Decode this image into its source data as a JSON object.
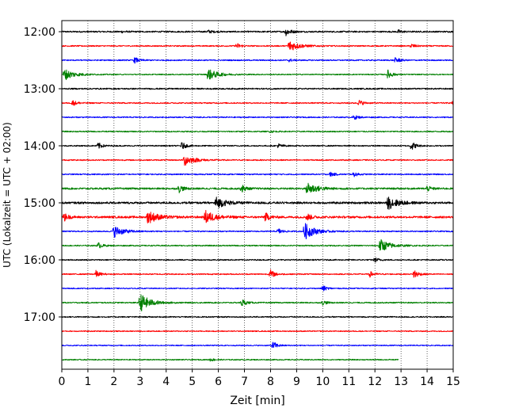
{
  "chart_data": {
    "type": "line",
    "title": "",
    "xlabel": "Zeit  [min]",
    "ylabel": "UTC (Lokalzeit = UTC + 02:00)",
    "xlim": [
      0,
      15
    ],
    "xticks": [
      0,
      1,
      2,
      3,
      4,
      5,
      6,
      7,
      8,
      9,
      10,
      11,
      12,
      13,
      14,
      15
    ],
    "y_tick_labels": [
      "12:00",
      "13:00",
      "14:00",
      "15:00",
      "16:00",
      "17:00"
    ],
    "y_tick_traces": [
      0,
      4,
      8,
      12,
      16,
      20
    ],
    "trace_interval_min": 15,
    "grid_x": true,
    "trace_colors": [
      "#000000",
      "#ff0000",
      "#0000ff",
      "#008000"
    ],
    "traces": [
      {
        "start": "12:00",
        "color": "#000000",
        "amplitude": 0.1,
        "end_min": 15,
        "events": [
          {
            "t": 2.3,
            "a": 0.1
          },
          {
            "t": 5.6,
            "a": 0.22
          },
          {
            "t": 8.6,
            "a": 0.6
          },
          {
            "t": 12.9,
            "a": 0.22
          }
        ]
      },
      {
        "start": "12:15",
        "color": "#ff0000",
        "amplitude": 0.08,
        "end_min": 15,
        "events": [
          {
            "t": 6.7,
            "a": 0.4
          },
          {
            "t": 8.7,
            "a": 0.8
          },
          {
            "t": 13.4,
            "a": 0.3
          }
        ]
      },
      {
        "start": "12:30",
        "color": "#0000ff",
        "amplitude": 0.08,
        "end_min": 15,
        "events": [
          {
            "t": 2.8,
            "a": 0.4
          },
          {
            "t": 8.7,
            "a": 0.2
          },
          {
            "t": 12.8,
            "a": 0.45
          }
        ]
      },
      {
        "start": "12:45",
        "color": "#008000",
        "amplitude": 0.07,
        "end_min": 15,
        "events": [
          {
            "t": 0.1,
            "a": 0.8
          },
          {
            "t": 5.6,
            "a": 0.8
          },
          {
            "t": 12.5,
            "a": 0.65
          }
        ]
      },
      {
        "start": "13:00",
        "color": "#000000",
        "amplitude": 0.09,
        "end_min": 15,
        "events": []
      },
      {
        "start": "13:15",
        "color": "#ff0000",
        "amplitude": 0.08,
        "end_min": 15,
        "events": [
          {
            "t": 0.4,
            "a": 0.45
          },
          {
            "t": 11.4,
            "a": 0.4
          },
          {
            "t": 15.0,
            "a": 0.3
          }
        ]
      },
      {
        "start": "13:30",
        "color": "#0000ff",
        "amplitude": 0.08,
        "end_min": 15,
        "events": [
          {
            "t": 11.2,
            "a": 0.3
          }
        ]
      },
      {
        "start": "13:45",
        "color": "#008000",
        "amplitude": 0.08,
        "end_min": 15,
        "events": [
          {
            "t": 8.0,
            "a": 0.12
          }
        ]
      },
      {
        "start": "14:00",
        "color": "#000000",
        "amplitude": 0.08,
        "end_min": 15,
        "events": [
          {
            "t": 1.4,
            "a": 0.45
          },
          {
            "t": 4.6,
            "a": 0.5
          },
          {
            "t": 8.3,
            "a": 0.3
          },
          {
            "t": 13.4,
            "a": 0.65
          }
        ]
      },
      {
        "start": "14:15",
        "color": "#ff0000",
        "amplitude": 0.08,
        "end_min": 15,
        "events": [
          {
            "t": 4.7,
            "a": 0.8
          }
        ]
      },
      {
        "start": "14:30",
        "color": "#0000ff",
        "amplitude": 0.08,
        "end_min": 15,
        "events": [
          {
            "t": 10.3,
            "a": 0.3
          },
          {
            "t": 11.2,
            "a": 0.3
          }
        ]
      },
      {
        "start": "14:45",
        "color": "#008000",
        "amplitude": 0.12,
        "end_min": 15,
        "events": [
          {
            "t": 4.5,
            "a": 0.5
          },
          {
            "t": 6.9,
            "a": 0.5
          },
          {
            "t": 9.4,
            "a": 0.9
          },
          {
            "t": 14.0,
            "a": 0.35
          }
        ]
      },
      {
        "start": "15:00",
        "color": "#000000",
        "amplitude": 0.14,
        "end_min": 15,
        "events": [
          {
            "t": 5.9,
            "a": 0.8
          },
          {
            "t": 12.5,
            "a": 0.9
          }
        ]
      },
      {
        "start": "15:15",
        "color": "#ff0000",
        "amplitude": 0.14,
        "end_min": 15,
        "events": [
          {
            "t": 0.1,
            "a": 0.5
          },
          {
            "t": 3.3,
            "a": 0.9
          },
          {
            "t": 5.5,
            "a": 0.9
          },
          {
            "t": 7.8,
            "a": 0.6
          },
          {
            "t": 9.4,
            "a": 0.5
          }
        ]
      },
      {
        "start": "15:30",
        "color": "#0000ff",
        "amplitude": 0.08,
        "end_min": 15,
        "events": [
          {
            "t": 2.0,
            "a": 0.8
          },
          {
            "t": 8.3,
            "a": 0.4
          },
          {
            "t": 9.3,
            "a": 1.2
          }
        ]
      },
      {
        "start": "15:45",
        "color": "#008000",
        "amplitude": 0.08,
        "end_min": 15,
        "events": [
          {
            "t": 1.4,
            "a": 0.4
          },
          {
            "t": 12.2,
            "a": 0.9
          }
        ]
      },
      {
        "start": "16:00",
        "color": "#000000",
        "amplitude": 0.08,
        "end_min": 15,
        "events": [
          {
            "t": 12.0,
            "a": 0.3
          }
        ]
      },
      {
        "start": "16:15",
        "color": "#ff0000",
        "amplitude": 0.08,
        "end_min": 15,
        "events": [
          {
            "t": 1.3,
            "a": 0.5
          },
          {
            "t": 8.0,
            "a": 0.6
          },
          {
            "t": 11.8,
            "a": 0.4
          },
          {
            "t": 13.5,
            "a": 0.7
          }
        ]
      },
      {
        "start": "16:30",
        "color": "#0000ff",
        "amplitude": 0.07,
        "end_min": 15,
        "events": [
          {
            "t": 10.0,
            "a": 0.4
          }
        ]
      },
      {
        "start": "16:45",
        "color": "#008000",
        "amplitude": 0.08,
        "end_min": 15,
        "events": [
          {
            "t": 3.0,
            "a": 1.3
          },
          {
            "t": 6.9,
            "a": 0.5
          },
          {
            "t": 10.0,
            "a": 0.3
          }
        ]
      },
      {
        "start": "17:00",
        "color": "#000000",
        "amplitude": 0.08,
        "end_min": 15,
        "events": []
      },
      {
        "start": "17:15",
        "color": "#ff0000",
        "amplitude": 0.07,
        "end_min": 15,
        "events": []
      },
      {
        "start": "17:30",
        "color": "#0000ff",
        "amplitude": 0.07,
        "end_min": 15,
        "events": [
          {
            "t": 8.1,
            "a": 0.55
          }
        ]
      },
      {
        "start": "17:45",
        "color": "#008000",
        "amplitude": 0.07,
        "end_min": 12.9,
        "events": [
          {
            "t": 5.7,
            "a": 0.2
          }
        ]
      }
    ]
  }
}
